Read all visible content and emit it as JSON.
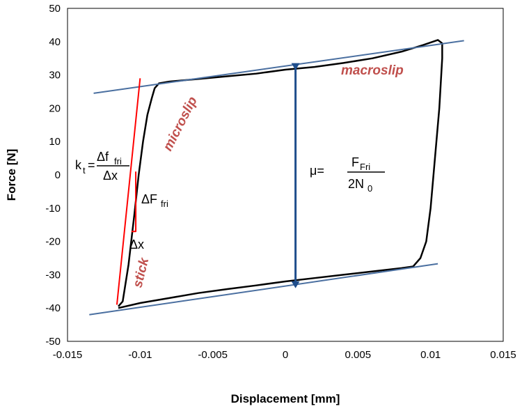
{
  "chart_data": {
    "type": "line",
    "xlabel": "Displacement [mm]",
    "ylabel": "Force [N]",
    "xlim": [
      -0.015,
      0.015
    ],
    "ylim": [
      -50,
      50
    ],
    "x_ticks": [
      "-0.015",
      "-0.01",
      "-0.005",
      "0",
      "0.005",
      "0.01",
      "0.015"
    ],
    "y_ticks": [
      "50",
      "40",
      "30",
      "20",
      "10",
      "0",
      "-10",
      "-20",
      "-30",
      "-40",
      "-50"
    ],
    "grid": false,
    "series": [
      {
        "color": "#000000",
        "points": [
          [
            -0.0115,
            -39.5
          ],
          [
            -0.0112,
            -38
          ],
          [
            -0.0108,
            -27
          ],
          [
            -0.0104,
            -12
          ],
          [
            -0.0101,
            0
          ],
          [
            -0.0098,
            10
          ],
          [
            -0.0095,
            18
          ],
          [
            -0.0092,
            23
          ],
          [
            -0.009,
            26
          ],
          [
            -0.0087,
            27.5
          ],
          [
            -0.008,
            28
          ],
          [
            -0.006,
            28.8
          ],
          [
            -0.004,
            29.6
          ],
          [
            -0.002,
            30.4
          ],
          [
            0.0,
            31.6
          ],
          [
            0.002,
            32.4
          ],
          [
            0.004,
            33.6
          ],
          [
            0.006,
            35
          ],
          [
            0.008,
            37
          ],
          [
            0.0095,
            39
          ],
          [
            0.0105,
            40.5
          ],
          [
            0.0108,
            39.5
          ],
          [
            0.0108,
            35
          ],
          [
            0.0106,
            20
          ],
          [
            0.0103,
            5
          ],
          [
            0.01,
            -10
          ],
          [
            0.0097,
            -20
          ],
          [
            0.0093,
            -25
          ],
          [
            0.0088,
            -27.5
          ],
          [
            0.008,
            -28
          ],
          [
            0.006,
            -29
          ],
          [
            0.004,
            -30
          ],
          [
            0.002,
            -31
          ],
          [
            0.0,
            -32
          ],
          [
            -0.002,
            -33.2
          ],
          [
            -0.004,
            -34.3
          ],
          [
            -0.006,
            -35.5
          ],
          [
            -0.008,
            -37
          ],
          [
            -0.01,
            -38.5
          ],
          [
            -0.0115,
            -40
          ]
        ]
      },
      {
        "color": "#4a6fa0",
        "points": [
          [
            -0.0132,
            24.5
          ],
          [
            0.0123,
            40.3
          ]
        ]
      },
      {
        "color": "#4a6fa0",
        "points": [
          [
            -0.0135,
            -42
          ],
          [
            0.0105,
            -26.7
          ]
        ]
      },
      {
        "color": "#ff0000",
        "points": [
          [
            -0.0116,
            -39
          ],
          [
            -0.01,
            29
          ]
        ]
      },
      {
        "color": "#ff0000",
        "points": [
          [
            -0.0103,
            1
          ],
          [
            -0.0103,
            -17
          ],
          [
            -0.0106,
            -17
          ]
        ]
      }
    ],
    "arrow": {
      "x": 0.0007,
      "y_from": 32.5,
      "y_to": -33,
      "color": "#1f4e8c"
    },
    "annotations": {
      "macroslip": "macroslip",
      "microslip": "microslip",
      "stick": "stick",
      "kt_main": "k",
      "kt_sub": "t",
      "kt_eq": "=",
      "kt_num_main": "Δf",
      "kt_num_sub": "fri",
      "kt_den": "Δx",
      "dF_main": "ΔF",
      "dF_sub": "fri",
      "dx": "Δx",
      "mu_lhs": "μ=",
      "mu_num_main": "F",
      "mu_num_sub": "Fri",
      "mu_den_main": "2N",
      "mu_den_sub": "0"
    }
  }
}
